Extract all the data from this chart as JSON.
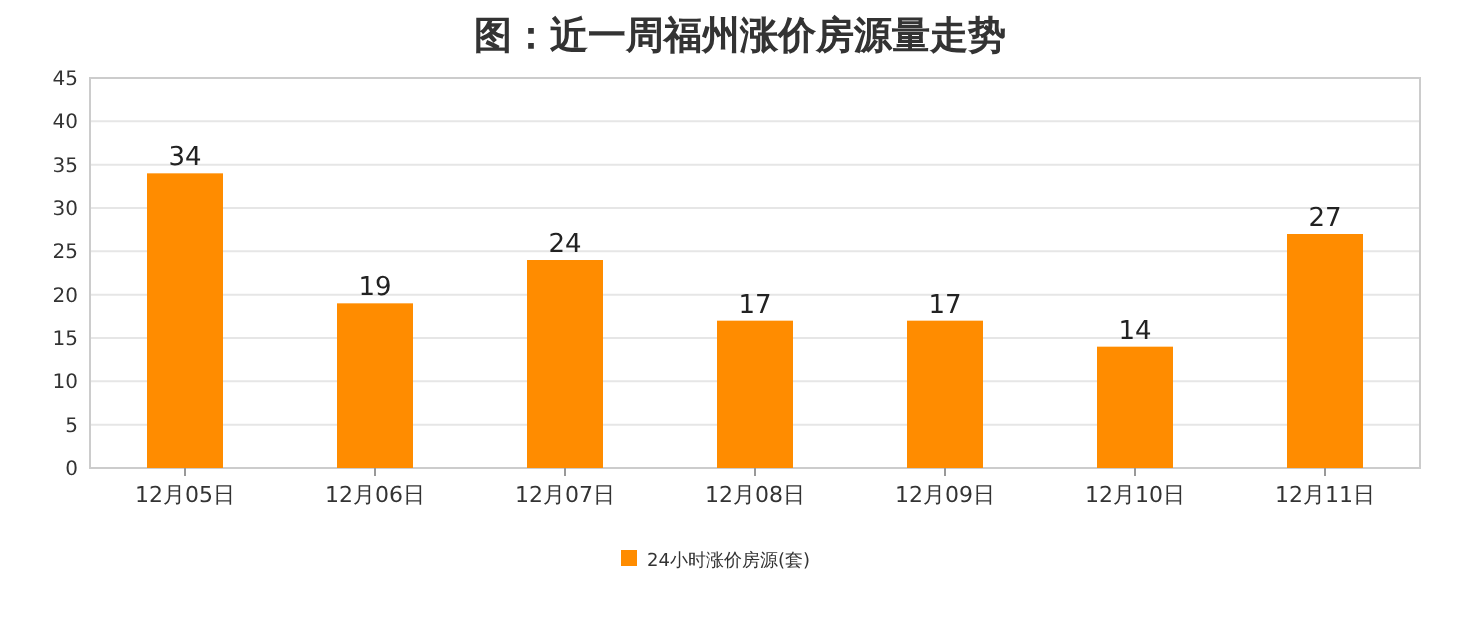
{
  "chart_data": {
    "type": "bar",
    "title": "图：近一周福州涨价房源量走势",
    "categories": [
      "12月05日",
      "12月06日",
      "12月07日",
      "12月08日",
      "12月09日",
      "12月10日",
      "12月11日"
    ],
    "series": [
      {
        "name": "24小时涨价房源(套)",
        "color": "#ff8c00",
        "values": [
          34,
          19,
          24,
          17,
          17,
          14,
          27
        ]
      }
    ],
    "ylim": [
      0,
      45
    ],
    "yticks": [
      0,
      5,
      10,
      15,
      20,
      25,
      30,
      35,
      40,
      45
    ],
    "grid": "y",
    "legend": "bottom",
    "data_labels": true
  }
}
